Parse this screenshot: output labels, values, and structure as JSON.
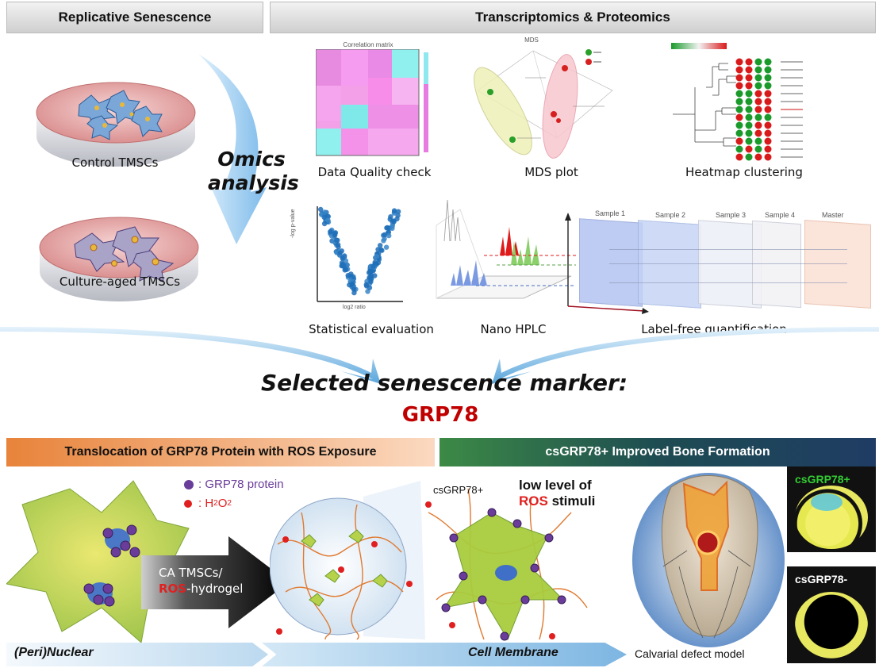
{
  "headers": {
    "left": "Replicative Senescence",
    "right": "Transcriptomics & Proteomics"
  },
  "dishes": {
    "control": "Control TMSCs",
    "aged": "Culture-aged TMSCs"
  },
  "omics": {
    "line1": "Omics",
    "line2": "analysis"
  },
  "panels": {
    "quality": "Data Quality check",
    "quality_inner_title": "Correlation matrix",
    "mds": "MDS plot",
    "mds_inner_title": "MDS",
    "heatmap": "Heatmap clustering",
    "stat": "Statistical evaluation",
    "stat_ylabel": "-log p-value",
    "stat_xlabel": "log2 ratio",
    "hplc": "Nano HPLC",
    "lfq": "Label-free quantification",
    "lfq_samples": [
      "Sample 1",
      "Sample 2",
      "Sample 3",
      "Sample 4",
      "Master"
    ]
  },
  "marker": {
    "title": "Selected senescence marker:",
    "name": "GRP78"
  },
  "bottom": {
    "left_bar": "Translocation of GRP78 Protein with ROS Exposure",
    "right_bar": "csGRP78+ Improved Bone Formation",
    "legend_protein": ": GRP78 protein",
    "legend_h2o2": ": H",
    "legend_h2o2_sub1": "2",
    "legend_h2o2_mid": "O",
    "legend_h2o2_sub2": "2",
    "arrow_line1": "CA TMSCs/",
    "arrow_ros": "ROS",
    "arrow_line2": "-hydrogel",
    "csgrp_label": "csGRP78+",
    "low_level_1": "low level of",
    "low_level_ros": "ROS",
    "low_level_2": " stimuli",
    "perinuclear": "(Peri)Nuclear",
    "cell_membrane": "Cell Membrane",
    "calvarial": "Calvarial defect model",
    "pos": "csGRP78+",
    "neg": "csGRP78-"
  },
  "colors": {
    "accent_red": "#c00000",
    "protein_purple": "#6a3d9a",
    "h2o2_red": "#e02020",
    "left_bar_bg": "#f4b98a",
    "right_bar_bg": "#2f6b3c",
    "pos_text": "#33cc33"
  }
}
